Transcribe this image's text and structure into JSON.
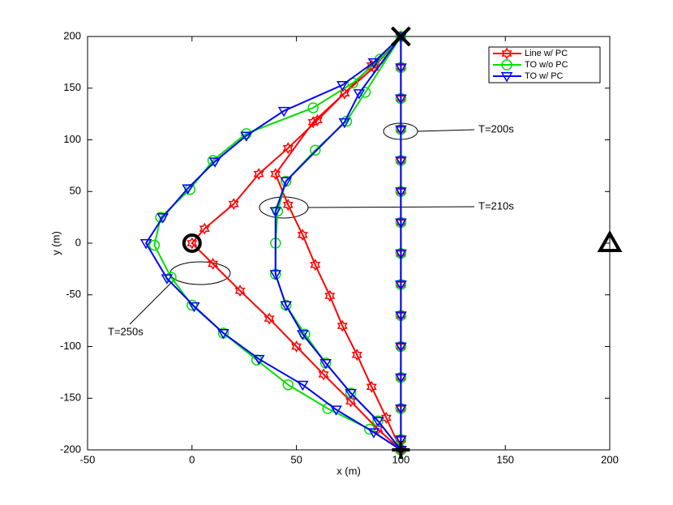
{
  "chart_data": {
    "type": "line",
    "xlabel": "x (m)",
    "ylabel": "y (m)",
    "xlim": [
      -50,
      200
    ],
    "ylim": [
      -200,
      200
    ],
    "xticks": [
      -50,
      0,
      50,
      100,
      150,
      200
    ],
    "yticks": [
      -200,
      -150,
      -100,
      -50,
      0,
      50,
      100,
      150,
      200
    ],
    "grid": false,
    "legend_position": "upper right",
    "series": [
      {
        "name": "Line w/ PC",
        "color": "#ff0000",
        "marker": "hexagram",
        "x": [
          100,
          100,
          100,
          100,
          100,
          100,
          100,
          100,
          100,
          100,
          100,
          100,
          100,
          100,
          100,
          null,
          100,
          86,
          73,
          60,
          46,
          32,
          20,
          6,
          0,
          10,
          23,
          37,
          50,
          63,
          76,
          89,
          100,
          null,
          100,
          87,
          73,
          58,
          40,
          46,
          53,
          59,
          66,
          72,
          79,
          86,
          93,
          100
        ],
        "values": [
          200,
          170,
          140,
          110,
          80,
          50,
          20,
          -10,
          -40,
          -70,
          -100,
          -130,
          -160,
          -190,
          -200,
          null,
          200,
          172,
          145,
          119,
          92,
          67,
          38,
          14,
          0,
          -20,
          -46,
          -73,
          -100,
          -127,
          -153,
          -180,
          -200,
          null,
          200,
          170,
          145,
          117,
          67,
          37,
          8,
          -21,
          -51,
          -80,
          -108,
          -139,
          -169,
          -200
        ]
      },
      {
        "name": "TO w/o PC",
        "color": "#00e000",
        "marker": "circle",
        "x": [
          100,
          100,
          100,
          100,
          100,
          100,
          100,
          100,
          100,
          100,
          100,
          100,
          100,
          100,
          100,
          null,
          100,
          90,
          77,
          58,
          26,
          10,
          -1,
          -15,
          -18,
          -10,
          0,
          15,
          31,
          46,
          65,
          85,
          100,
          null,
          100,
          83,
          74,
          59,
          45,
          41,
          40,
          40,
          45,
          54,
          64,
          76,
          89,
          100
        ],
        "values": [
          200,
          170,
          140,
          110,
          80,
          50,
          20,
          -10,
          -40,
          -70,
          -100,
          -130,
          -160,
          -190,
          -200,
          null,
          200,
          178,
          155,
          131,
          106,
          80,
          52,
          25,
          -2,
          -33,
          -60,
          -87,
          -113,
          -137,
          -160,
          -180,
          -200,
          null,
          200,
          146,
          118,
          90,
          60,
          31,
          0,
          -30,
          -60,
          -88,
          -116,
          -145,
          -172,
          -200
        ]
      },
      {
        "name": "TO w/ PC",
        "color": "#0000ff",
        "marker": "triangle-down",
        "x": [
          100,
          100,
          100,
          100,
          100,
          100,
          100,
          100,
          100,
          100,
          100,
          100,
          100,
          100,
          100,
          null,
          100,
          87,
          72,
          44,
          26,
          11,
          -2,
          -14,
          -22,
          -12,
          1,
          15,
          32,
          53,
          69,
          87,
          100,
          null,
          100,
          80,
          73,
          45,
          40,
          40,
          45,
          53,
          64,
          76,
          89,
          100
        ],
        "values": [
          200,
          170,
          140,
          110,
          80,
          50,
          20,
          -10,
          -40,
          -70,
          -100,
          -130,
          -160,
          -190,
          -200,
          null,
          200,
          175,
          153,
          128,
          104,
          79,
          53,
          25,
          0,
          -34,
          -61,
          -87,
          -112,
          -137,
          -161,
          -183,
          -200,
          null,
          200,
          145,
          117,
          60,
          31,
          -30,
          -60,
          -88,
          -116,
          -145,
          -172,
          -200
        ]
      }
    ],
    "landmarks": [
      {
        "x": 100,
        "y": 200,
        "symbol": "x"
      },
      {
        "x": 100,
        "y": -200,
        "symbol": "plus"
      },
      {
        "x": 0,
        "y": 0,
        "symbol": "circle"
      },
      {
        "x": 200,
        "y": 0,
        "symbol": "triangle"
      }
    ],
    "annotations": [
      "T=200s",
      "T=210s",
      "T=250s"
    ]
  }
}
